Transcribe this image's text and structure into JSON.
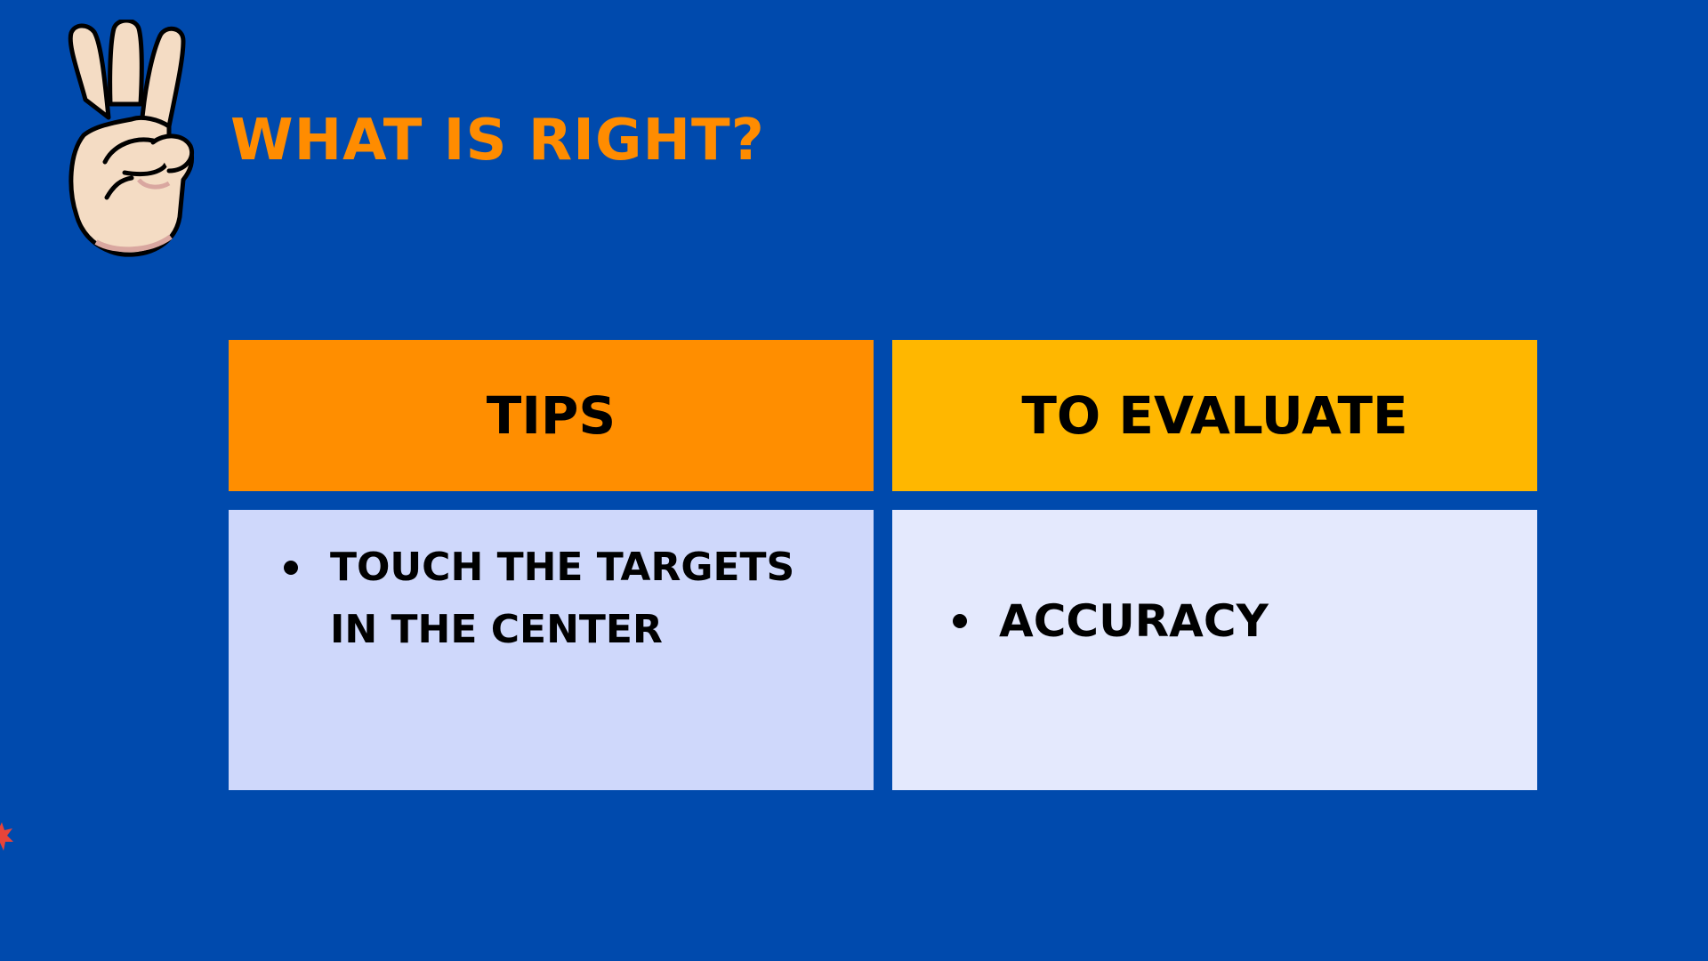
{
  "slide": {
    "title": "WHAT IS RIGHT?",
    "icon": "three-fingers-hand-icon",
    "colors": {
      "background": "#004aad",
      "title": "#ff8c00",
      "tips_header": "#ff8e00",
      "evaluate_header": "#ffb700",
      "tips_body": "#cfd8fb",
      "evaluate_body": "#e4e9fd"
    }
  },
  "table": {
    "headers": [
      "TIPS",
      "TO EVALUATE"
    ],
    "tips": [
      "TOUCH THE TARGETS IN THE CENTER"
    ],
    "evaluate": [
      "ACCURACY"
    ]
  }
}
